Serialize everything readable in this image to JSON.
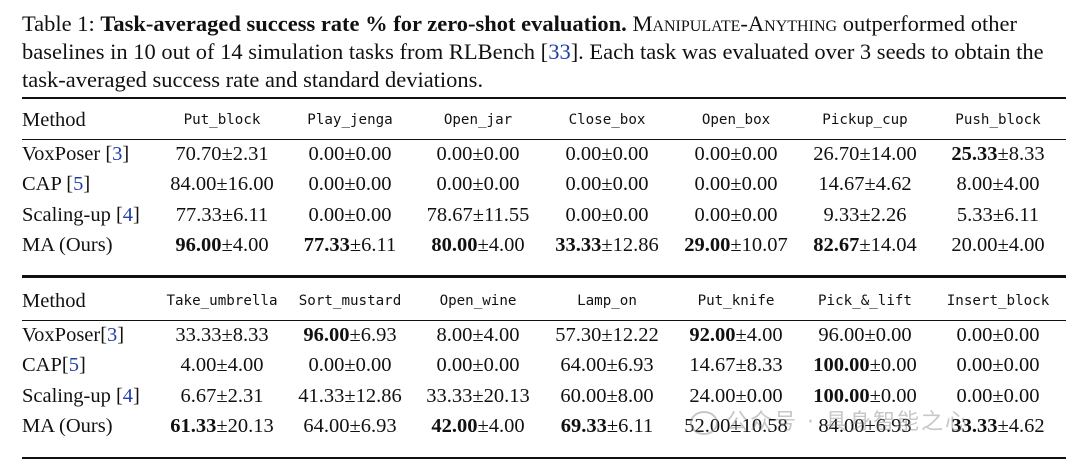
{
  "caption": {
    "label": "Table 1:",
    "bold": "Task-averaged success rate % for zero-shot evaluation.",
    "smallcaps": "Manipulate-Anything",
    "text1": "outperformed other baselines in 10 out of 14 simulation tasks from RLBench [",
    "ref": "33",
    "text2": "]. Each task was evaluated over 3 seeds to obtain the task-averaged success rate and standard deviations."
  },
  "tables": [
    {
      "method_header": "Method",
      "tasks": [
        "Put_block",
        "Play_jenga",
        "Open_jar",
        "Close_box",
        "Open_box",
        "Pickup_cup",
        "Push_block"
      ],
      "rows": [
        {
          "name": "VoxPoser ",
          "ref": "3",
          "cells": [
            {
              "v": "70.70",
              "s": "2.31"
            },
            {
              "v": "0.00",
              "s": "0.00"
            },
            {
              "v": "0.00",
              "s": "0.00"
            },
            {
              "v": "0.00",
              "s": "0.00"
            },
            {
              "v": "0.00",
              "s": "0.00"
            },
            {
              "v": "26.70",
              "s": "14.00"
            },
            {
              "v": "25.33",
              "s": "8.33",
              "b": true
            }
          ]
        },
        {
          "name": "CAP ",
          "ref": "5",
          "cells": [
            {
              "v": "84.00",
              "s": "16.00"
            },
            {
              "v": "0.00",
              "s": "0.00"
            },
            {
              "v": "0.00",
              "s": "0.00"
            },
            {
              "v": "0.00",
              "s": "0.00"
            },
            {
              "v": "0.00",
              "s": "0.00"
            },
            {
              "v": "14.67",
              "s": "4.62"
            },
            {
              "v": "8.00",
              "s": "4.00"
            }
          ]
        },
        {
          "name": "Scaling-up ",
          "ref": "4",
          "cells": [
            {
              "v": "77.33",
              "s": "6.11"
            },
            {
              "v": "0.00",
              "s": "0.00"
            },
            {
              "v": "78.67",
              "s": "11.55"
            },
            {
              "v": "0.00",
              "s": "0.00"
            },
            {
              "v": "0.00",
              "s": "0.00"
            },
            {
              "v": "9.33",
              "s": "2.26"
            },
            {
              "v": "5.33",
              "s": "6.11"
            }
          ]
        },
        {
          "name": "MA (Ours)",
          "ref": "",
          "cells": [
            {
              "v": "96.00",
              "s": "4.00",
              "b": true
            },
            {
              "v": "77.33",
              "s": "6.11",
              "b": true
            },
            {
              "v": "80.00",
              "s": "4.00",
              "b": true
            },
            {
              "v": "33.33",
              "s": "12.86",
              "b": true
            },
            {
              "v": "29.00",
              "s": "10.07",
              "b": true
            },
            {
              "v": "82.67",
              "s": "14.04",
              "b": true
            },
            {
              "v": "20.00",
              "s": "4.00"
            }
          ]
        }
      ]
    },
    {
      "method_header": "Method",
      "tasks": [
        "Take_umbrella",
        "Sort_mustard",
        "Open_wine",
        "Lamp_on",
        "Put_knife",
        "Pick_&_lift",
        "Insert_block"
      ],
      "rows": [
        {
          "name": "VoxPoser",
          "ref": "3",
          "cells": [
            {
              "v": "33.33",
              "s": "8.33"
            },
            {
              "v": "96.00",
              "s": "6.93",
              "b": true
            },
            {
              "v": "8.00",
              "s": "4.00"
            },
            {
              "v": "57.30",
              "s": "12.22"
            },
            {
              "v": "92.00",
              "s": "4.00",
              "b": true
            },
            {
              "v": "96.00",
              "s": "0.00"
            },
            {
              "v": "0.00",
              "s": "0.00"
            }
          ]
        },
        {
          "name": "CAP",
          "ref": "5",
          "cells": [
            {
              "v": "4.00",
              "s": "4.00"
            },
            {
              "v": "0.00",
              "s": "0.00"
            },
            {
              "v": "0.00",
              "s": "0.00"
            },
            {
              "v": "64.00",
              "s": "6.93"
            },
            {
              "v": "14.67",
              "s": "8.33"
            },
            {
              "v": "100.00",
              "s": "0.00",
              "b": true
            },
            {
              "v": "0.00",
              "s": "0.00"
            }
          ]
        },
        {
          "name": "Scaling-up ",
          "ref": "4",
          "cells": [
            {
              "v": "6.67",
              "s": "2.31"
            },
            {
              "v": "41.33",
              "s": "12.86"
            },
            {
              "v": "33.33",
              "s": "20.13"
            },
            {
              "v": "60.00",
              "s": "8.00"
            },
            {
              "v": "24.00",
              "s": "0.00"
            },
            {
              "v": "100.00",
              "s": "0.00",
              "b": true
            },
            {
              "v": "0.00",
              "s": "0.00"
            }
          ]
        },
        {
          "name": "MA (Ours)",
          "ref": "",
          "cells": [
            {
              "v": "61.33",
              "s": "20.13",
              "b": true
            },
            {
              "v": "64.00",
              "s": "6.93"
            },
            {
              "v": "42.00",
              "s": "4.00",
              "b": true
            },
            {
              "v": "69.33",
              "s": "6.11",
              "b": true
            },
            {
              "v": "52.00",
              "s": "10.58"
            },
            {
              "v": "84.00",
              "s": "6.93"
            },
            {
              "v": "33.33",
              "s": "4.62",
              "b": true
            }
          ]
        }
      ]
    }
  ],
  "watermark": "公众号 · 具身智能之心"
}
